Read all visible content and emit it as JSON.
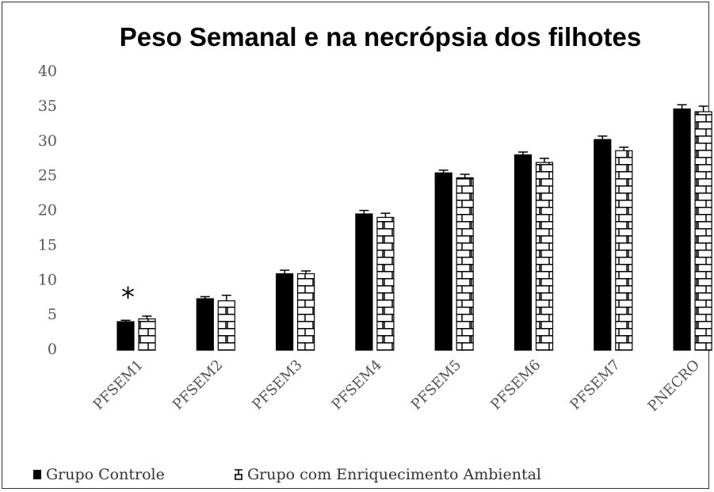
{
  "chart_data": {
    "type": "bar",
    "title": "Peso Semanal e na necrópsia dos filhotes",
    "categories": [
      "PFSEM1",
      "PFSEM2",
      "PFSEM3",
      "PFSEM4",
      "PFSEM5",
      "PFSEM6",
      "PFSEM7",
      "PNECRO"
    ],
    "series": [
      {
        "name": "Grupo Controle",
        "color": "#000000",
        "pattern": "solid",
        "values": [
          4.1,
          7.4,
          11.0,
          19.6,
          25.5,
          28.1,
          30.3,
          34.7
        ],
        "errors": [
          0.2,
          0.3,
          0.5,
          0.5,
          0.4,
          0.4,
          0.5,
          0.6
        ]
      },
      {
        "name": "Grupo com Enriquecimento Ambiental",
        "color": "#000000",
        "pattern": "brick",
        "values": [
          4.5,
          7.1,
          11.0,
          19.1,
          24.8,
          27.0,
          28.7,
          34.3
        ],
        "errors": [
          0.4,
          0.8,
          0.4,
          0.6,
          0.5,
          0.6,
          0.5,
          0.8
        ]
      }
    ],
    "annotation": "*",
    "ylim": [
      0,
      40
    ],
    "yticks": [
      0,
      5,
      10,
      15,
      20,
      25,
      30,
      35,
      40
    ],
    "grid": false
  }
}
